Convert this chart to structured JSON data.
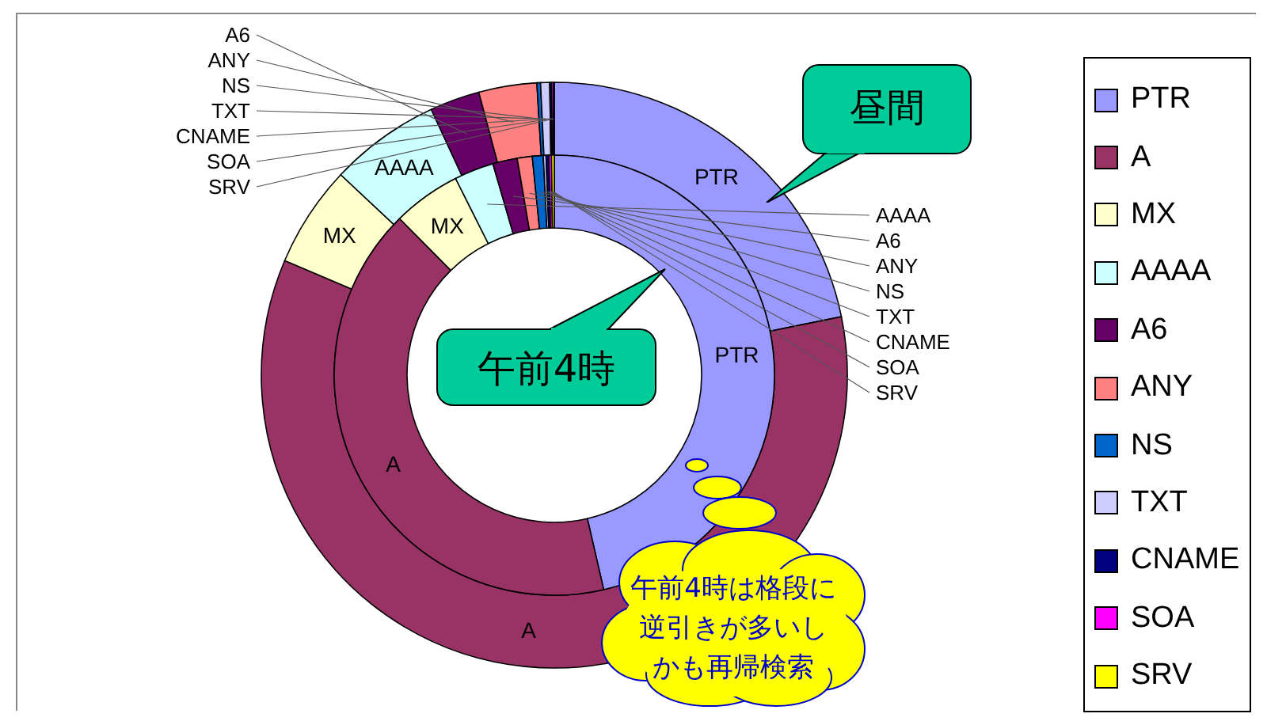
{
  "chart_data": {
    "type": "donut",
    "categories": [
      "PTR",
      "A",
      "MX",
      "AAAA",
      "A6",
      "ANY",
      "NS",
      "TXT",
      "CNAME",
      "SOA",
      "SRV"
    ],
    "colors": [
      "#9999ff",
      "#993366",
      "#ffffcc",
      "#ccffff",
      "#660066",
      "#ff8080",
      "#0066cc",
      "#ccccff",
      "#000080",
      "#ff00ff",
      "#ffff00"
    ],
    "series": [
      {
        "name": "昼間",
        "values": [
          21.8,
          59.6,
          5.6,
          6.1,
          2.75,
          3.2,
          0.2,
          0.5,
          0.1,
          0.1,
          0.05
        ]
      },
      {
        "name": "午前4時",
        "values": [
          46.4,
          41.2,
          5,
          2.9,
          1.8,
          1.1,
          0.8,
          0.2,
          0.2,
          0.2,
          0.2
        ]
      }
    ],
    "legend": "right",
    "annotations": [
      "午前4時は格段に逆引きが多いしかも再帰検索"
    ]
  }
}
